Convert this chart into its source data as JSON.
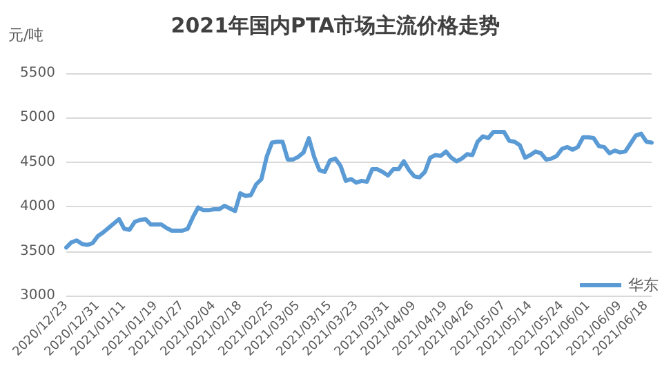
{
  "chart_data": {
    "type": "line",
    "title": "2021年国内PTA市场主流价格走势",
    "ylabel": "元/吨",
    "categories": [
      "2020/12/23",
      null,
      null,
      null,
      null,
      null,
      "2020/12/31",
      null,
      null,
      null,
      null,
      "2021/01/11",
      null,
      null,
      null,
      null,
      null,
      "2021/01/19",
      null,
      null,
      null,
      null,
      "2021/01/27",
      null,
      null,
      null,
      null,
      null,
      "2021/02/04",
      null,
      null,
      null,
      null,
      "2021/02/18",
      null,
      null,
      null,
      null,
      null,
      "2021/02/25",
      null,
      null,
      null,
      null,
      "2021/03/05",
      null,
      null,
      null,
      null,
      null,
      "2021/03/15",
      null,
      null,
      null,
      null,
      "2021/03/23",
      null,
      null,
      null,
      null,
      null,
      "2021/03/31",
      null,
      null,
      null,
      null,
      "2021/04/09",
      null,
      null,
      null,
      null,
      null,
      "2021/04/19",
      null,
      null,
      null,
      null,
      "2021/04/26",
      null,
      null,
      null,
      null,
      null,
      "2021/05/07",
      null,
      null,
      null,
      null,
      "2021/05/14",
      null,
      null,
      null,
      null,
      null,
      "2021/05/24",
      null,
      null,
      null,
      null,
      "2021/06/01",
      null,
      null,
      null,
      null,
      null,
      "2021/06/09",
      null,
      null,
      null,
      null,
      "2021/06/18",
      null
    ],
    "series": [
      {
        "name": "华东",
        "color": "#5b9bd5",
        "values": [
          3540,
          3600,
          3620,
          3580,
          3570,
          3590,
          3670,
          3710,
          3760,
          3810,
          3860,
          3750,
          3740,
          3830,
          3850,
          3860,
          3800,
          3800,
          3800,
          3760,
          3730,
          3730,
          3730,
          3750,
          3880,
          3990,
          3960,
          3960,
          3970,
          3970,
          4010,
          3980,
          3950,
          4150,
          4120,
          4130,
          4250,
          4310,
          4560,
          4720,
          4730,
          4730,
          4530,
          4530,
          4560,
          4610,
          4770,
          4560,
          4410,
          4390,
          4520,
          4540,
          4460,
          4290,
          4310,
          4270,
          4290,
          4280,
          4420,
          4420,
          4390,
          4350,
          4420,
          4420,
          4510,
          4410,
          4340,
          4330,
          4390,
          4550,
          4580,
          4570,
          4620,
          4550,
          4510,
          4540,
          4590,
          4580,
          4730,
          4790,
          4770,
          4840,
          4840,
          4840,
          4740,
          4730,
          4690,
          4550,
          4580,
          4620,
          4600,
          4530,
          4540,
          4570,
          4650,
          4670,
          4640,
          4670,
          4780,
          4780,
          4770,
          4680,
          4670,
          4600,
          4630,
          4610,
          4620,
          4710,
          4800,
          4820,
          4730,
          4720
        ]
      }
    ],
    "ylim": [
      3000,
      5500
    ],
    "yticks": [
      3000,
      3500,
      4000,
      4500,
      5000,
      5500
    ],
    "grid": "y",
    "legend": "bottom right",
    "marker": "none",
    "line_style": "solid"
  }
}
